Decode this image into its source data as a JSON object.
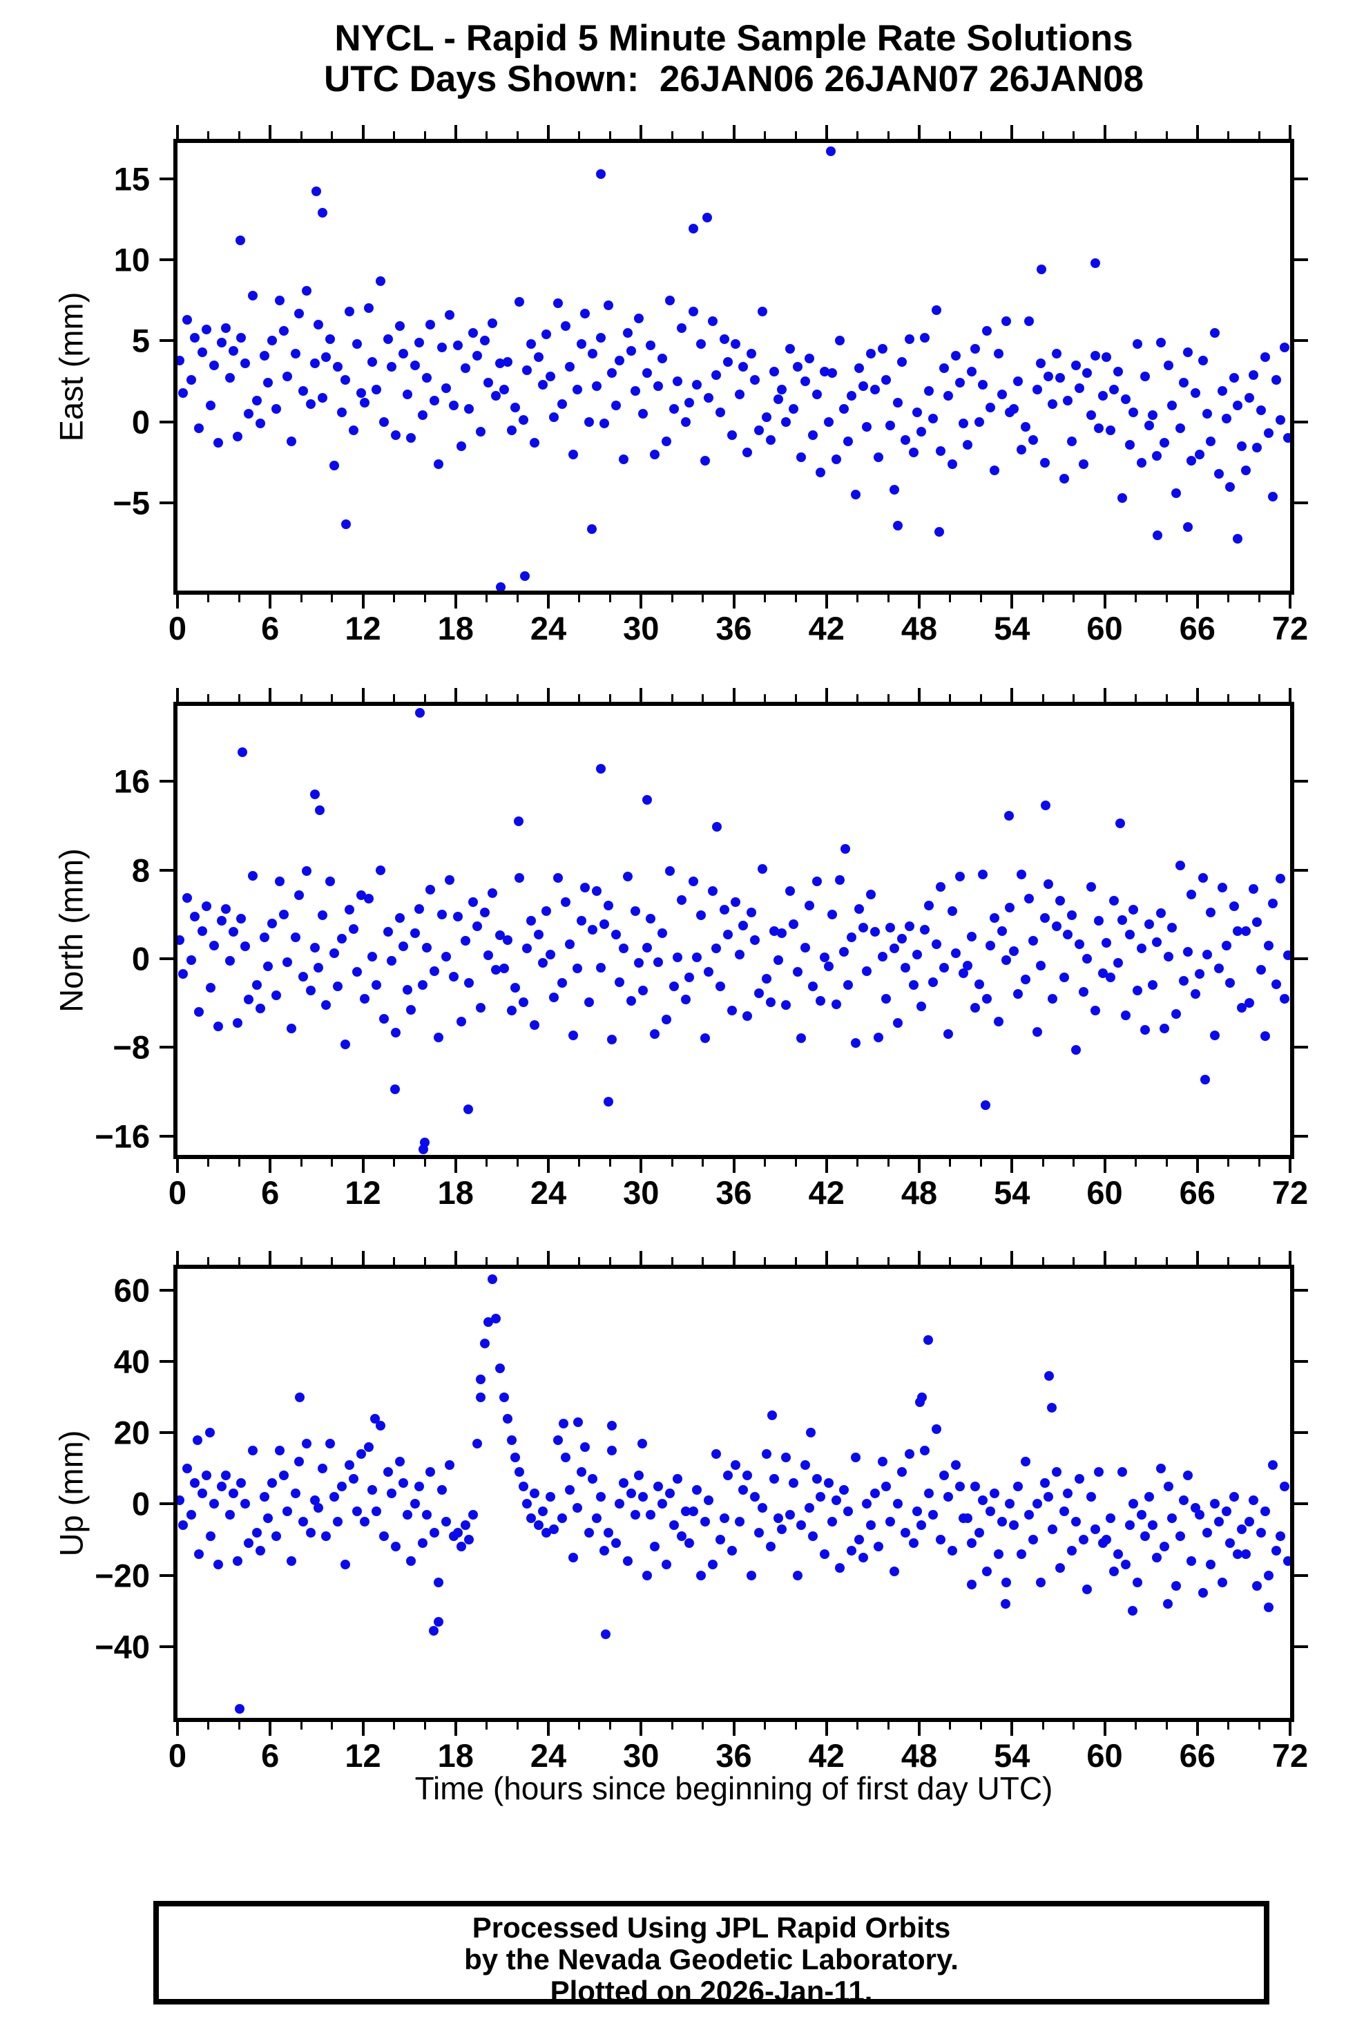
{
  "title": {
    "line1": "NYCL - Rapid 5 Minute Sample Rate Solutions",
    "line2": "UTC Days Shown:  26JAN06 26JAN07 26JAN08"
  },
  "footer": {
    "line1": "Processed Using JPL Rapid Orbits",
    "line2": "by the Nevada Geodetic Laboratory.",
    "line3": "Plotted on 2026-Jan-11."
  },
  "colors": {
    "dot": "#0a0af2",
    "frame": "#000000"
  },
  "chart_data": {
    "type": "scatter",
    "title": "NYCL - Rapid 5 Minute Sample Rate Solutions",
    "subtitle": "UTC Days Shown:  26JAN06 26JAN07 26JAN08",
    "xlabel": "Time (hours since beginning of first day UTC)",
    "x_axis": {
      "min": 0,
      "max": 72,
      "major_tick_step": 6,
      "minor_tick_step": 2,
      "tick_labels": [
        "0",
        "6",
        "12",
        "18",
        "24",
        "30",
        "36",
        "42",
        "48",
        "54",
        "60",
        "66",
        "72"
      ]
    },
    "panels": [
      {
        "id": "east",
        "ylabel": "East (mm)",
        "ylim": [
          -10.4,
          17.2
        ],
        "yticks": [
          {
            "v": 15,
            "label": "15"
          },
          {
            "v": 10,
            "label": "10"
          },
          {
            "v": 5,
            "label": "5"
          },
          {
            "v": 0,
            "label": "0"
          },
          {
            "v": -5,
            "label": "−5"
          }
        ],
        "x_start": 0.125,
        "x_step": 0.25,
        "y": [
          3.8,
          1.8,
          6.3,
          2.6,
          5.2,
          -0.4,
          4.3,
          5.7,
          1.0,
          3.5,
          -1.3,
          4.9,
          5.8,
          2.7,
          4.4,
          -0.9,
          5.2,
          3.6,
          0.5,
          7.8,
          1.3,
          -0.1,
          4.1,
          2.4,
          5.0,
          0.8,
          7.5,
          5.6,
          2.8,
          -1.2,
          4.2,
          6.7,
          1.9,
          8.1,
          1.1,
          3.6,
          6.0,
          1.5,
          4.0,
          5.1,
          -2.7,
          3.4,
          0.6,
          2.6,
          6.8,
          -0.5,
          4.8,
          1.8,
          1.2,
          7.0,
          3.7,
          2.0,
          8.7,
          0.0,
          5.1,
          3.4,
          -0.8,
          5.9,
          4.2,
          1.7,
          -1.0,
          3.5,
          4.9,
          0.4,
          2.7,
          6.0,
          1.3,
          -2.6,
          4.6,
          2.1,
          6.6,
          1.0,
          4.7,
          -1.5,
          3.3,
          0.8,
          5.5,
          4.1,
          -0.6,
          5.0,
          2.4,
          6.1,
          1.6,
          3.6,
          2.0,
          3.7,
          -0.5,
          0.9,
          7.4,
          0.1,
          3.2,
          4.8,
          -1.3,
          4.0,
          2.3,
          5.4,
          2.8,
          0.3,
          7.3,
          1.1,
          5.9,
          3.4,
          -2.0,
          2.0,
          4.8,
          6.7,
          0.0,
          4.2,
          2.2,
          5.2,
          -0.1,
          7.2,
          3.0,
          1.0,
          3.8,
          -2.3,
          5.5,
          4.4,
          1.9,
          6.4,
          0.5,
          3.0,
          4.7,
          -2.0,
          2.2,
          3.9,
          -1.2,
          7.5,
          0.8,
          2.5,
          5.8,
          0.0,
          1.2,
          6.8,
          2.3,
          4.8,
          -2.4,
          1.5,
          6.2,
          2.9,
          0.6,
          5.1,
          3.7,
          -0.8,
          4.8,
          1.7,
          3.4,
          -1.9,
          4.2,
          2.6,
          -0.5,
          6.8,
          0.3,
          -1.1,
          3.1,
          1.4,
          2.0,
          0.0,
          4.5,
          0.8,
          3.4,
          -2.2,
          2.5,
          3.9,
          -0.8,
          1.7,
          -3.1,
          3.1,
          0.0,
          3.0,
          -2.3,
          5.0,
          0.8,
          -1.2,
          1.6,
          -4.5,
          3.3,
          2.2,
          -0.3,
          4.2,
          2.0,
          -2.2,
          4.5,
          2.6,
          -0.2,
          -4.2,
          1.2,
          3.7,
          -1.1,
          5.1,
          -1.9,
          0.6,
          -0.6,
          5.2,
          1.9,
          0.2,
          6.9,
          -1.8,
          3.3,
          1.6,
          -2.6,
          4.1,
          2.4,
          -0.1,
          -1.4,
          3.1,
          4.5,
          0.0,
          2.3,
          5.6,
          0.9,
          -3.0,
          4.2,
          1.7,
          6.2,
          0.6,
          0.8,
          2.5,
          -1.7,
          -0.3,
          6.2,
          -1.1,
          2.0,
          3.6,
          -2.5,
          2.8,
          1.1,
          4.2,
          2.7,
          -3.5,
          1.3,
          -1.2,
          3.5,
          2.1,
          -2.6,
          3.0,
          0.4,
          4.1,
          -0.4,
          1.6,
          4.0,
          -0.5,
          2.0,
          3.1,
          -4.7,
          1.4,
          -1.4,
          0.6,
          4.8,
          -2.5,
          2.8,
          -0.2,
          0.4,
          -2.1,
          4.9,
          -1.3,
          3.5,
          1.0,
          -4.4,
          -0.4,
          2.4,
          4.3,
          -2.4,
          1.8,
          -2.0,
          3.8,
          0.5,
          -1.2,
          5.5,
          -3.2,
          1.9,
          0.2,
          -4.0,
          2.7,
          1.0,
          -1.5,
          -3.0,
          1.5,
          2.9,
          -1.6,
          0.7,
          4.0,
          -0.7,
          -4.6,
          2.6,
          0.1,
          4.6,
          -1.0
        ],
        "outliers": [
          [
            9.0,
            14.2
          ],
          [
            9.4,
            12.9
          ],
          [
            4.05,
            11.2
          ],
          [
            27.4,
            15.3
          ],
          [
            42.3,
            16.7
          ],
          [
            22.5,
            -9.5
          ],
          [
            20.9,
            -10.2
          ],
          [
            34.3,
            12.6
          ],
          [
            33.4,
            11.9
          ],
          [
            59.4,
            9.8
          ],
          [
            55.9,
            9.4
          ],
          [
            63.4,
            -7.0
          ],
          [
            46.6,
            -6.4
          ],
          [
            10.9,
            -6.3
          ],
          [
            26.8,
            -6.6
          ],
          [
            49.3,
            -6.8
          ],
          [
            68.6,
            -7.2
          ],
          [
            65.4,
            -6.5
          ]
        ]
      },
      {
        "id": "north",
        "ylabel": "North (mm)",
        "ylim": [
          -17.7,
          22.8
        ],
        "yticks": [
          {
            "v": 16,
            "label": "16"
          },
          {
            "v": 8,
            "label": "8"
          },
          {
            "v": 0,
            "label": "0"
          },
          {
            "v": -8,
            "label": "−8"
          },
          {
            "v": -16,
            "label": "−16"
          }
        ],
        "x_start": 0.125,
        "x_step": 0.25,
        "y": [
          1.7,
          -1.4,
          5.5,
          -0.1,
          3.8,
          -4.8,
          2.5,
          4.7,
          -2.6,
          1.2,
          -6.1,
          3.4,
          4.5,
          -0.2,
          2.4,
          -5.8,
          3.6,
          1.1,
          -3.7,
          7.5,
          -2.4,
          -4.5,
          1.9,
          -0.7,
          3.2,
          -3.3,
          7.0,
          4.0,
          -0.3,
          -6.3,
          1.9,
          5.7,
          -1.6,
          7.9,
          -2.9,
          1.0,
          -0.8,
          3.9,
          -4.2,
          7.0,
          0.5,
          -2.5,
          1.8,
          -7.7,
          4.4,
          2.7,
          -1.2,
          5.7,
          -3.6,
          5.4,
          0.2,
          -2.4,
          8.0,
          -5.4,
          2.4,
          -0.2,
          -6.7,
          3.7,
          1.1,
          -2.8,
          -4.6,
          2.3,
          4.5,
          -2.4,
          1.0,
          6.2,
          -1.1,
          -7.1,
          4.0,
          0.2,
          7.1,
          -1.6,
          3.8,
          -5.7,
          1.6,
          -2.2,
          5.1,
          2.9,
          -4.4,
          4.2,
          0.3,
          5.9,
          -1.0,
          2.1,
          -0.9,
          1.7,
          -4.7,
          -2.6,
          7.3,
          -3.9,
          0.9,
          3.4,
          -6.0,
          2.2,
          -0.4,
          4.3,
          0.4,
          -3.5,
          7.3,
          -2.2,
          5.1,
          1.3,
          -6.9,
          -0.9,
          3.4,
          6.4,
          -3.9,
          2.6,
          6.1,
          -0.8,
          3.1,
          4.8,
          -7.3,
          2.2,
          -2.1,
          0.9,
          7.4,
          -3.8,
          4.3,
          -0.4,
          -2.9,
          1.0,
          3.6,
          -6.8,
          -0.3,
          2.3,
          -5.5,
          7.9,
          -2.5,
          0.1,
          5.3,
          -3.7,
          -1.7,
          7.0,
          0.1,
          3.9,
          -7.2,
          -1.2,
          6.1,
          0.9,
          -2.5,
          4.4,
          2.2,
          -4.7,
          5.1,
          0.4,
          3.0,
          -5.2,
          4.2,
          1.7,
          -3.1,
          8.1,
          -1.8,
          -3.9,
          2.5,
          -0.1,
          2.3,
          -4.2,
          6.1,
          3.1,
          -1.2,
          -7.2,
          1.0,
          4.8,
          -2.5,
          7.0,
          -3.8,
          0.1,
          -0.7,
          4.0,
          -4.1,
          7.1,
          0.6,
          -2.4,
          1.9,
          -7.6,
          4.5,
          2.8,
          -1.1,
          5.8,
          2.4,
          -7.1,
          0.2,
          -3.6,
          2.8,
          0.9,
          -5.8,
          1.8,
          -0.8,
          2.9,
          -2.4,
          0.4,
          -4.3,
          2.6,
          4.8,
          -2.1,
          1.3,
          6.5,
          -0.8,
          -6.8,
          4.3,
          0.5,
          7.4,
          -1.3,
          -0.6,
          2.0,
          -4.4,
          -2.3,
          7.6,
          -3.6,
          1.2,
          3.7,
          -5.7,
          2.5,
          -0.1,
          4.6,
          0.7,
          -3.2,
          7.6,
          -1.9,
          5.4,
          1.6,
          -6.6,
          -0.6,
          3.7,
          6.7,
          -3.6,
          2.9,
          5.2,
          -1.7,
          2.2,
          3.9,
          -8.2,
          1.3,
          -3.0,
          0.0,
          6.5,
          -4.7,
          3.4,
          -1.3,
          1.4,
          -1.7,
          5.2,
          -0.4,
          3.5,
          -5.1,
          2.2,
          4.4,
          -2.9,
          0.9,
          -6.4,
          3.1,
          -2.4,
          1.5,
          4.1,
          -6.3,
          0.2,
          2.8,
          -5.0,
          8.4,
          -2.0,
          0.6,
          5.8,
          -3.2,
          -1.4,
          7.3,
          0.4,
          4.2,
          -6.9,
          -0.9,
          6.4,
          1.2,
          -2.2,
          4.7,
          2.5,
          -4.4,
          2.5,
          -4.0,
          6.3,
          3.3,
          -1.0,
          -7.0,
          1.2,
          5.0,
          -2.3,
          7.2,
          -3.6,
          0.3
        ],
        "outliers": [
          [
            4.2,
            18.6
          ],
          [
            15.7,
            22.2
          ],
          [
            8.9,
            14.8
          ],
          [
            9.2,
            13.4
          ],
          [
            27.4,
            17.1
          ],
          [
            30.4,
            14.3
          ],
          [
            16.0,
            -16.6
          ],
          [
            15.9,
            -17.2
          ],
          [
            18.8,
            -13.6
          ],
          [
            27.9,
            -12.9
          ],
          [
            53.8,
            12.9
          ],
          [
            56.2,
            13.8
          ],
          [
            52.3,
            -13.2
          ],
          [
            14.1,
            -11.8
          ],
          [
            66.5,
            -10.9
          ],
          [
            34.9,
            11.9
          ],
          [
            43.2,
            9.9
          ],
          [
            22.1,
            12.4
          ],
          [
            61.0,
            12.2
          ]
        ]
      },
      {
        "id": "up",
        "ylabel": "Up (mm)",
        "ylim": [
          -60,
          66
        ],
        "yticks": [
          {
            "v": 60,
            "label": "60"
          },
          {
            "v": 40,
            "label": "40"
          },
          {
            "v": 20,
            "label": "20"
          },
          {
            "v": 0,
            "label": "0"
          },
          {
            "v": -20,
            "label": "−20"
          },
          {
            "v": -40,
            "label": "−40"
          }
        ],
        "x_start": 0.125,
        "x_step": 0.25,
        "y": [
          1,
          -6,
          10,
          -3,
          6,
          -14,
          3,
          8,
          -9,
          0,
          -17,
          5,
          8,
          -3,
          3,
          -16,
          6,
          0,
          -11,
          15,
          -8,
          -13,
          2,
          -4,
          6,
          -9,
          15,
          8,
          -2,
          -16,
          3,
          12,
          -5,
          17,
          -8,
          1,
          -1,
          10,
          -9,
          17,
          2,
          -5,
          5,
          -17,
          11,
          7,
          -2,
          14,
          -5,
          16,
          4,
          -2,
          22,
          -9,
          9,
          3,
          -12,
          12,
          6,
          -3,
          -16,
          0,
          5,
          -11,
          -3,
          9,
          -8,
          -22,
          4,
          -5,
          11,
          -9,
          -8,
          -12,
          -6,
          -10,
          -3,
          17,
          30,
          45,
          51,
          63,
          52,
          38,
          30,
          24,
          18,
          13,
          9,
          5,
          0,
          -4,
          3,
          -6,
          -2,
          -8,
          2,
          -7,
          18,
          -4,
          13,
          4,
          -15,
          -1,
          9,
          16,
          -8,
          7,
          -4,
          2,
          -13,
          -8,
          15,
          -11,
          0,
          6,
          -16,
          3,
          -3,
          8,
          2,
          -20,
          -3,
          -12,
          5,
          0,
          -17,
          3,
          -6,
          7,
          -9,
          -2,
          -11,
          -2,
          4,
          -20,
          -5,
          1,
          -17,
          14,
          -10,
          -4,
          8,
          -13,
          11,
          -5,
          4,
          8,
          -20,
          2,
          -8,
          -1,
          14,
          -12,
          7,
          -4,
          -7,
          13,
          -3,
          6,
          -20,
          -6,
          11,
          -1,
          -9,
          7,
          2,
          -14,
          6,
          -5,
          1,
          -18,
          4,
          -2,
          -13,
          13,
          -10,
          -15,
          0,
          -6,
          3,
          -12,
          12,
          5,
          -5,
          -19,
          0,
          9,
          -8,
          14,
          -11,
          -2,
          -6,
          15,
          3,
          -3,
          21,
          -10,
          8,
          2,
          -13,
          11,
          5,
          -4,
          -4,
          -11,
          5,
          -8,
          1,
          -19,
          -2,
          3,
          -14,
          -5,
          -22,
          0,
          -6,
          5,
          -14,
          12,
          -3,
          -10,
          0,
          -22,
          6,
          2,
          -7,
          9,
          -18,
          -2,
          3,
          -13,
          -5,
          7,
          -10,
          -24,
          2,
          -7,
          9,
          -11,
          -10,
          -4,
          -19,
          -14,
          9,
          -17,
          -6,
          0,
          -22,
          -3,
          -9,
          2,
          -6,
          -15,
          10,
          -12,
          5,
          -4,
          -23,
          -9,
          1,
          8,
          -16,
          -1,
          -3,
          -25,
          -8,
          -17,
          0,
          -5,
          -22,
          -2,
          -11,
          2,
          -14,
          -7,
          -14,
          -5,
          1,
          -23,
          -8,
          -2,
          -20,
          11,
          -13,
          -9,
          5,
          -16
        ],
        "outliers": [
          [
            4.0,
            -57.5
          ],
          [
            7.9,
            30
          ],
          [
            12.8,
            24
          ],
          [
            16.6,
            -35.5
          ],
          [
            16.9,
            -33
          ],
          [
            27.7,
            -36.5
          ],
          [
            25.0,
            22.5
          ],
          [
            25.9,
            23
          ],
          [
            28.1,
            22
          ],
          [
            30.1,
            17
          ],
          [
            48.2,
            30
          ],
          [
            48.05,
            28.5
          ],
          [
            48.6,
            46
          ],
          [
            56.4,
            36
          ],
          [
            56.6,
            27
          ],
          [
            51.4,
            -22.5
          ],
          [
            61.8,
            -30
          ],
          [
            64.1,
            -28
          ],
          [
            70.6,
            -29
          ],
          [
            53.6,
            -28
          ],
          [
            2.1,
            20
          ],
          [
            1.3,
            18
          ],
          [
            41.0,
            20
          ],
          [
            38.5,
            25
          ],
          [
            19.6,
            35
          ]
        ]
      }
    ]
  }
}
